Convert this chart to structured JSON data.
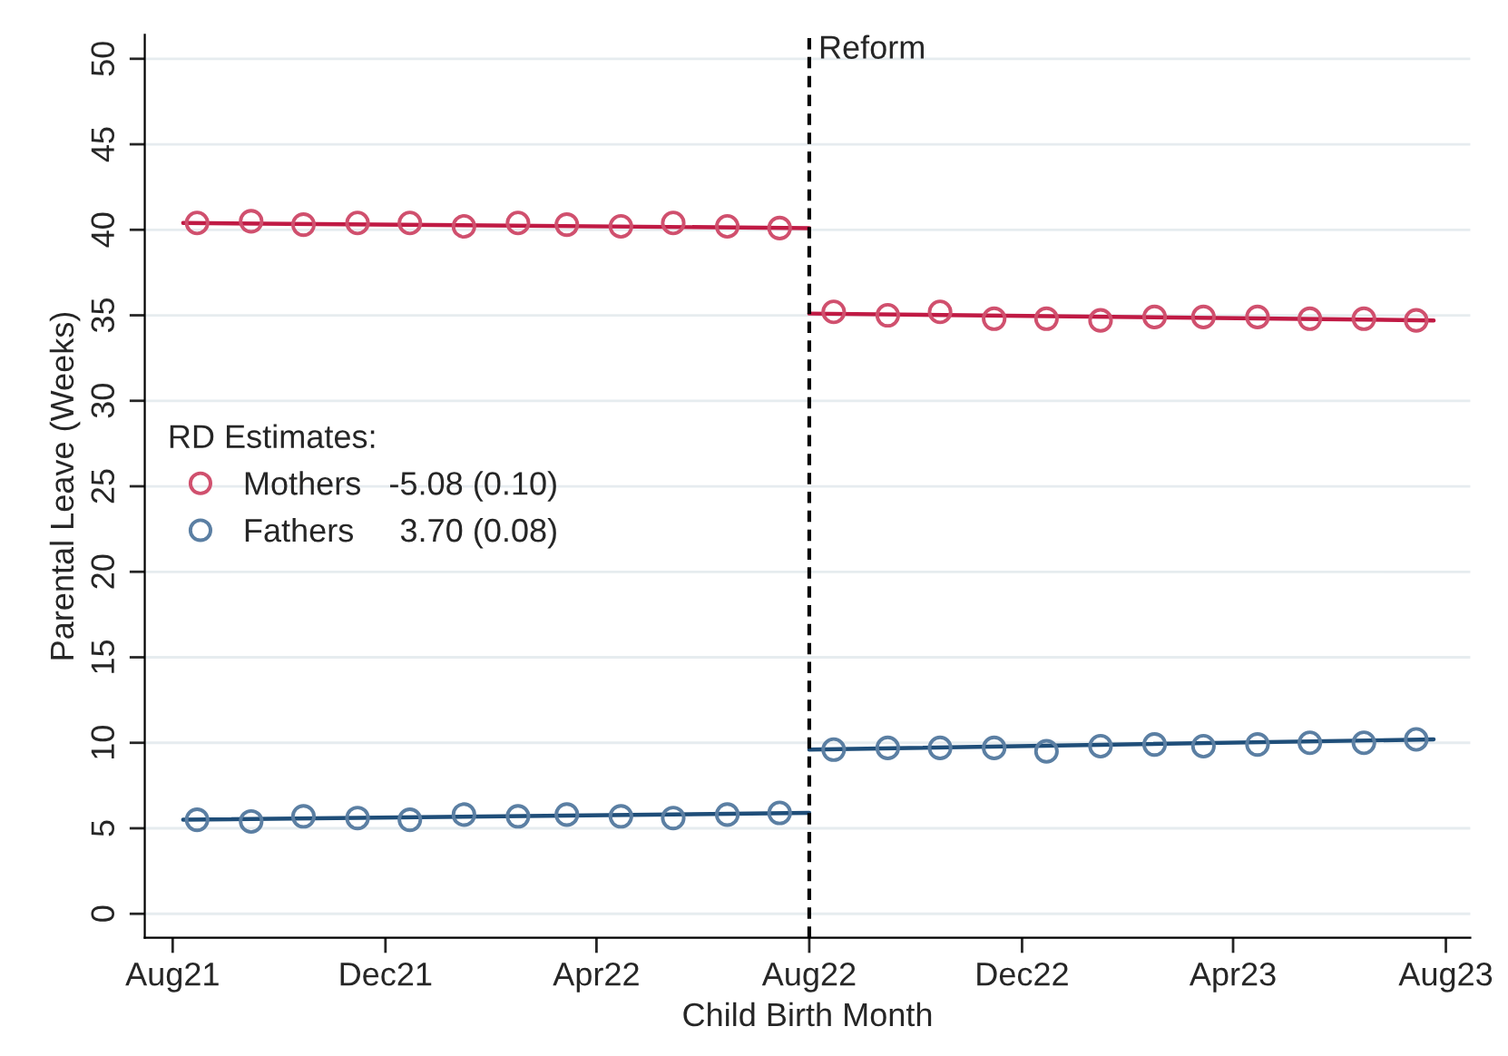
{
  "chart_data": {
    "type": "scatter",
    "xlabel": "Child Birth Month",
    "ylabel": "Parental Leave (Weeks)",
    "legend_title": "RD Estimates:",
    "legend": "left",
    "grid": "y",
    "marker": "circle",
    "x": [
      "2021-08-15",
      "2021-09-15",
      "2021-10-15",
      "2021-11-15",
      "2021-12-15",
      "2022-01-15",
      "2022-02-15",
      "2022-03-15",
      "2022-04-15",
      "2022-05-15",
      "2022-06-15",
      "2022-07-15",
      "2022-08-15",
      "2022-09-15",
      "2022-10-15",
      "2022-11-15",
      "2022-12-15",
      "2023-01-15",
      "2023-02-15",
      "2023-03-15",
      "2023-04-15",
      "2023-05-15",
      "2023-06-15",
      "2023-07-15"
    ],
    "xlim": [
      "2021-07-16",
      "2023-08-15"
    ],
    "xticks": [
      {
        "value": "2021-08-01",
        "label": "Aug21"
      },
      {
        "value": "2021-12-01",
        "label": "Dec21"
      },
      {
        "value": "2022-04-01",
        "label": "Apr22"
      },
      {
        "value": "2022-08-01",
        "label": "Aug22"
      },
      {
        "value": "2022-12-01",
        "label": "Dec22"
      },
      {
        "value": "2023-04-01",
        "label": "Apr23"
      },
      {
        "value": "2023-08-01",
        "label": "Aug23"
      }
    ],
    "ylim": [
      -1.4,
      51.4
    ],
    "yticks": [
      0,
      5,
      10,
      15,
      20,
      25,
      30,
      35,
      40,
      45,
      50
    ],
    "series": [
      {
        "name": "Mothers   -5.08 (0.10)",
        "color": "#d0506e",
        "values": [
          40.4,
          40.5,
          40.3,
          40.4,
          40.4,
          40.2,
          40.4,
          40.3,
          40.2,
          40.4,
          40.2,
          40.1,
          35.2,
          35.0,
          35.2,
          34.8,
          34.8,
          34.7,
          34.9,
          34.9,
          34.9,
          34.8,
          34.8,
          34.7
        ]
      },
      {
        "name": "Fathers     3.70 (0.08)",
        "color": "#5b7fa3",
        "values": [
          5.5,
          5.4,
          5.7,
          5.6,
          5.5,
          5.8,
          5.7,
          5.8,
          5.7,
          5.6,
          5.8,
          5.9,
          9.6,
          9.7,
          9.7,
          9.7,
          9.5,
          9.8,
          9.9,
          9.8,
          9.9,
          10.0,
          10.0,
          10.2
        ]
      },
      {
        "type": "line",
        "marker": "none",
        "color": "#c01a44",
        "x": [
          "2021-08-07",
          "2022-08-01"
        ],
        "values": [
          40.4,
          40.1
        ]
      },
      {
        "type": "line",
        "marker": "none",
        "color": "#c01a44",
        "x": [
          "2022-08-01",
          "2023-07-25"
        ],
        "values": [
          35.1,
          34.7
        ]
      },
      {
        "type": "line",
        "marker": "none",
        "color": "#1f4e79",
        "x": [
          "2021-08-07",
          "2022-08-01"
        ],
        "values": [
          5.5,
          5.9
        ]
      },
      {
        "type": "line",
        "marker": "none",
        "color": "#1f4e79",
        "x": [
          "2022-08-01",
          "2023-07-25"
        ],
        "values": [
          9.6,
          10.2
        ]
      }
    ],
    "ref_lines": [
      {
        "axis": "x",
        "value": "2022-08-01",
        "label": "Reform",
        "color": "#000000",
        "line_style": "dashed"
      }
    ]
  }
}
